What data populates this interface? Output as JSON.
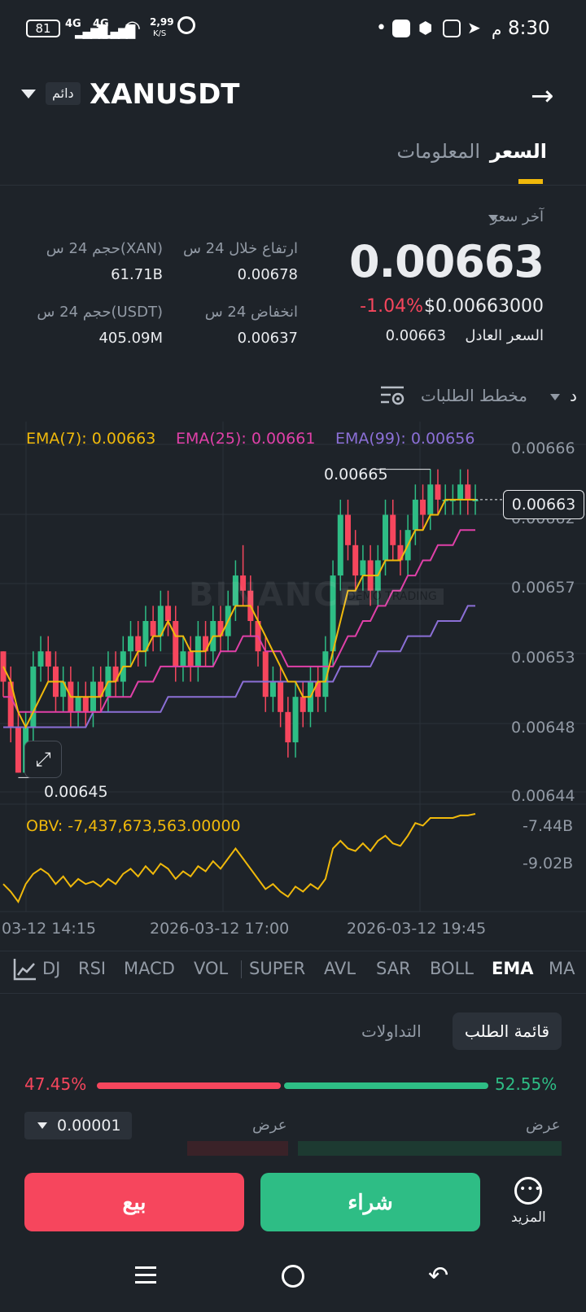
{
  "status_bar": {
    "time": "8:30",
    "ampm": "م",
    "battery": "81",
    "network1": "4G",
    "network2": "4G",
    "speed": "2,99",
    "speed_unit": "K/S"
  },
  "header": {
    "symbol": "XANUSDT",
    "perp_tag": "دائم"
  },
  "tabs": {
    "price": "السعر",
    "info": "المعلومات"
  },
  "price": {
    "last_label": "آخر سعر",
    "last": "0.00663",
    "change_pct": "-1.04%",
    "usd": "$0.00663000",
    "fair_label": "السعر العادل",
    "fair": "0.00663"
  },
  "stats": {
    "high_label": "ارتفاع خلال 24 س",
    "high": "0.00678",
    "low_label": "انخفاض 24 س",
    "low": "0.00637",
    "vol_xan_label": "حجم 24 س(XAN)",
    "vol_xan": "61.71B",
    "vol_usdt_label": "حجم 24 س(USDT)",
    "vol_usdt": "405.09M"
  },
  "chart_toolbar": {
    "depth_label": "مخطط الطلبات",
    "interval_short": "د"
  },
  "chart_data": {
    "type": "candlestick",
    "ema_legend": {
      "ema7": "EMA(7): 0.00663",
      "ema25": "EMA(25): 0.00661",
      "ema99": "EMA(99): 0.00656"
    },
    "y_ticks": [
      "0.00666",
      "0.00662",
      "0.00657",
      "0.00653",
      "0.00648",
      "0.00644"
    ],
    "ylim": [
      0.00644,
      0.00666
    ],
    "current_price_tag": "0.00663",
    "high_marker": "0.00665",
    "low_marker": "0.00645",
    "x_ticks": [
      "03-12 14:15",
      "2026-03-12 17:00",
      "2026-03-12 19:45"
    ],
    "watermark": "BINANCE",
    "watermark_tag": "DEMO TRADING",
    "obv_label": "OBV: -7,437,673,563.00000",
    "obv_ticks": [
      "-7.44B",
      "-9.02B"
    ],
    "colors": {
      "up": "#2ebd85",
      "down": "#f6465d",
      "ema7": "#f0b90b",
      "ema25": "#e040a8",
      "ema99": "#8b6fd6",
      "obv": "#f0b90b"
    },
    "candles": [
      [
        0.00653,
        0.00651,
        0.00653,
        0.0065
      ],
      [
        0.00651,
        0.00648,
        0.00652,
        0.00647
      ],
      [
        0.00648,
        0.00645,
        0.00649,
        0.00645
      ],
      [
        0.00645,
        0.00648,
        0.00649,
        0.00645
      ],
      [
        0.00648,
        0.00652,
        0.00653,
        0.00647
      ],
      [
        0.00652,
        0.00653,
        0.00654,
        0.00651
      ],
      [
        0.00653,
        0.00652,
        0.00654,
        0.00651
      ],
      [
        0.00652,
        0.0065,
        0.00653,
        0.00649
      ],
      [
        0.0065,
        0.00651,
        0.00652,
        0.00649
      ],
      [
        0.00651,
        0.00649,
        0.00652,
        0.00648
      ],
      [
        0.00649,
        0.0065,
        0.00651,
        0.00648
      ],
      [
        0.0065,
        0.00649,
        0.00651,
        0.00648
      ],
      [
        0.00649,
        0.00651,
        0.00652,
        0.00648
      ],
      [
        0.00651,
        0.0065,
        0.00652,
        0.00649
      ],
      [
        0.0065,
        0.00652,
        0.00653,
        0.00649
      ],
      [
        0.00652,
        0.00651,
        0.00653,
        0.0065
      ],
      [
        0.00651,
        0.00653,
        0.00654,
        0.0065
      ],
      [
        0.00653,
        0.00654,
        0.00655,
        0.00652
      ],
      [
        0.00654,
        0.00653,
        0.00655,
        0.00652
      ],
      [
        0.00653,
        0.00655,
        0.00656,
        0.00652
      ],
      [
        0.00655,
        0.00654,
        0.00656,
        0.00653
      ],
      [
        0.00654,
        0.00656,
        0.00657,
        0.00653
      ],
      [
        0.00656,
        0.00655,
        0.00657,
        0.00654
      ],
      [
        0.00655,
        0.00652,
        0.00656,
        0.00651
      ],
      [
        0.00652,
        0.00653,
        0.00654,
        0.00651
      ],
      [
        0.00653,
        0.00652,
        0.00654,
        0.00651
      ],
      [
        0.00652,
        0.00654,
        0.00655,
        0.00651
      ],
      [
        0.00654,
        0.00653,
        0.00655,
        0.00652
      ],
      [
        0.00653,
        0.00655,
        0.00656,
        0.00652
      ],
      [
        0.00655,
        0.00654,
        0.00656,
        0.00653
      ],
      [
        0.00654,
        0.00656,
        0.00657,
        0.00653
      ],
      [
        0.00656,
        0.00658,
        0.00659,
        0.00655
      ],
      [
        0.00658,
        0.00657,
        0.0066,
        0.00656
      ],
      [
        0.00657,
        0.00655,
        0.00658,
        0.00654
      ],
      [
        0.00655,
        0.00653,
        0.00656,
        0.00652
      ],
      [
        0.00653,
        0.0065,
        0.00654,
        0.00649
      ],
      [
        0.0065,
        0.00651,
        0.00652,
        0.00649
      ],
      [
        0.00651,
        0.00649,
        0.00652,
        0.00648
      ],
      [
        0.00649,
        0.00647,
        0.0065,
        0.00646
      ],
      [
        0.00647,
        0.0065,
        0.00651,
        0.00646
      ],
      [
        0.0065,
        0.00649,
        0.00651,
        0.00648
      ],
      [
        0.00649,
        0.00651,
        0.00652,
        0.00648
      ],
      [
        0.00651,
        0.0065,
        0.00652,
        0.00649
      ],
      [
        0.0065,
        0.00653,
        0.00654,
        0.00649
      ],
      [
        0.00653,
        0.00658,
        0.00659,
        0.00652
      ],
      [
        0.00658,
        0.00662,
        0.00663,
        0.00657
      ],
      [
        0.00662,
        0.0066,
        0.00663,
        0.00659
      ],
      [
        0.0066,
        0.00658,
        0.00661,
        0.00657
      ],
      [
        0.00658,
        0.00659,
        0.0066,
        0.00657
      ],
      [
        0.00659,
        0.00657,
        0.0066,
        0.00656
      ],
      [
        0.00657,
        0.00659,
        0.0066,
        0.00656
      ],
      [
        0.00659,
        0.00662,
        0.00663,
        0.00658
      ],
      [
        0.00662,
        0.0066,
        0.00663,
        0.00659
      ],
      [
        0.0066,
        0.00659,
        0.00661,
        0.00658
      ],
      [
        0.00659,
        0.00661,
        0.00662,
        0.00658
      ],
      [
        0.00661,
        0.00663,
        0.00664,
        0.0066
      ],
      [
        0.00663,
        0.00662,
        0.00664,
        0.00661
      ],
      [
        0.00662,
        0.00664,
        0.00665,
        0.00661
      ],
      [
        0.00664,
        0.00663,
        0.00665,
        0.00662
      ],
      [
        0.00663,
        0.00663,
        0.00664,
        0.00662
      ],
      [
        0.00663,
        0.00663,
        0.00664,
        0.00662
      ],
      [
        0.00663,
        0.00664,
        0.00665,
        0.00662
      ],
      [
        0.00664,
        0.00663,
        0.00665,
        0.00662
      ],
      [
        0.00663,
        0.00663,
        0.00664,
        0.00662
      ]
    ],
    "ema7_values": [
      0.00652,
      0.00651,
      0.00649,
      0.00648,
      0.00649,
      0.0065,
      0.00651,
      0.00651,
      0.00651,
      0.0065,
      0.0065,
      0.0065,
      0.0065,
      0.0065,
      0.00651,
      0.00651,
      0.00652,
      0.00652,
      0.00653,
      0.00653,
      0.00654,
      0.00654,
      0.00655,
      0.00654,
      0.00654,
      0.00653,
      0.00653,
      0.00653,
      0.00654,
      0.00654,
      0.00655,
      0.00656,
      0.00656,
      0.00656,
      0.00655,
      0.00654,
      0.00653,
      0.00652,
      0.00651,
      0.00651,
      0.0065,
      0.0065,
      0.00651,
      0.00651,
      0.00653,
      0.00655,
      0.00657,
      0.00657,
      0.00658,
      0.00658,
      0.00658,
      0.00659,
      0.00659,
      0.00659,
      0.0066,
      0.00661,
      0.00661,
      0.00662,
      0.00662,
      0.00663,
      0.00663,
      0.00663,
      0.00663,
      0.00663
    ],
    "ema25_values": [
      0.0065,
      0.0065,
      0.00649,
      0.00649,
      0.00649,
      0.00649,
      0.00649,
      0.00649,
      0.00649,
      0.00649,
      0.00649,
      0.00649,
      0.00649,
      0.00649,
      0.0065,
      0.0065,
      0.0065,
      0.0065,
      0.00651,
      0.00651,
      0.00651,
      0.00652,
      0.00652,
      0.00652,
      0.00652,
      0.00652,
      0.00652,
      0.00652,
      0.00652,
      0.00653,
      0.00653,
      0.00653,
      0.00654,
      0.00654,
      0.00654,
      0.00653,
      0.00653,
      0.00653,
      0.00652,
      0.00652,
      0.00652,
      0.00652,
      0.00652,
      0.00652,
      0.00652,
      0.00653,
      0.00654,
      0.00654,
      0.00655,
      0.00655,
      0.00656,
      0.00656,
      0.00657,
      0.00657,
      0.00658,
      0.00658,
      0.00659,
      0.00659,
      0.0066,
      0.0066,
      0.0066,
      0.00661,
      0.00661,
      0.00661
    ],
    "ema99_values": [
      0.00648,
      0.00648,
      0.00648,
      0.00648,
      0.00648,
      0.00648,
      0.00648,
      0.00648,
      0.00648,
      0.00648,
      0.00648,
      0.00648,
      0.00649,
      0.00649,
      0.00649,
      0.00649,
      0.00649,
      0.00649,
      0.00649,
      0.00649,
      0.00649,
      0.00649,
      0.0065,
      0.0065,
      0.0065,
      0.0065,
      0.0065,
      0.0065,
      0.0065,
      0.0065,
      0.0065,
      0.0065,
      0.00651,
      0.00651,
      0.00651,
      0.00651,
      0.00651,
      0.00651,
      0.00651,
      0.00651,
      0.00651,
      0.00651,
      0.00651,
      0.00651,
      0.00651,
      0.00652,
      0.00652,
      0.00652,
      0.00652,
      0.00652,
      0.00653,
      0.00653,
      0.00653,
      0.00653,
      0.00654,
      0.00654,
      0.00654,
      0.00654,
      0.00655,
      0.00655,
      0.00655,
      0.00655,
      0.00656,
      0.00656
    ],
    "obv_values": [
      -10.2,
      -10.5,
      -10.9,
      -10.2,
      -9.8,
      -9.6,
      -9.8,
      -10.2,
      -9.9,
      -10.3,
      -10.0,
      -10.2,
      -10.1,
      -10.3,
      -10.0,
      -10.2,
      -9.8,
      -9.6,
      -9.9,
      -9.5,
      -9.8,
      -9.4,
      -9.6,
      -10.0,
      -9.7,
      -9.9,
      -9.5,
      -9.7,
      -9.3,
      -9.6,
      -9.2,
      -8.8,
      -9.2,
      -9.6,
      -10.0,
      -10.4,
      -10.2,
      -10.5,
      -10.7,
      -10.3,
      -10.5,
      -10.2,
      -10.4,
      -10.0,
      -8.8,
      -8.5,
      -8.8,
      -8.9,
      -8.6,
      -8.9,
      -8.5,
      -8.3,
      -8.6,
      -8.7,
      -8.3,
      -7.8,
      -7.9,
      -7.6,
      -7.6,
      -7.6,
      -7.6,
      -7.5,
      -7.5,
      -7.44
    ]
  },
  "indicators": [
    "DJ",
    "RSI",
    "MACD",
    "VOL",
    "SUPER",
    "AVL",
    "SAR",
    "BOLL",
    "EMA",
    "MA"
  ],
  "active_indicator": "EMA",
  "orderbook": {
    "tab_book": "قائمة الطلب",
    "tab_trades": "التداولات",
    "sell_pct": "47.45%",
    "buy_pct": "52.55%",
    "sell_ratio": 0.4745,
    "precision": "0.00001",
    "bid_label": "عرض",
    "ask_label": "عرض"
  },
  "actions": {
    "sell": "بيع",
    "buy": "شراء",
    "more": "المزيد"
  }
}
